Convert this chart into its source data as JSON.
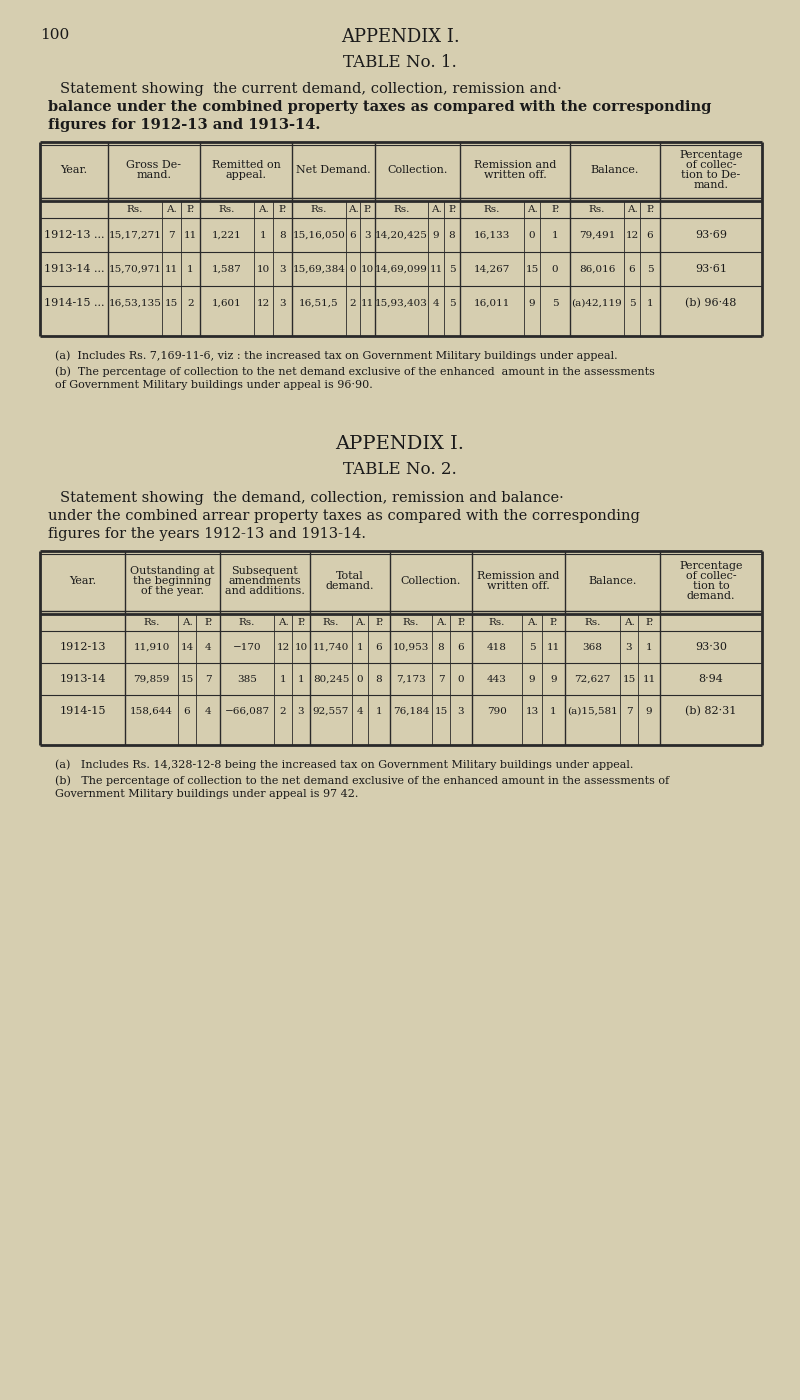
{
  "bg_color": "#d6ceb0",
  "page_number": "100",
  "appendix_title": "APPENDIX I.",
  "table1_title": "TABLE No. 1.",
  "table1_statement_line1": "Statement showing  the current demand, collection, remission and·",
  "table1_statement_line2": "balance under the combined property taxes as compared with the corresponding",
  "table1_statement_line3": "figures for 1912-13 and 1913-14.",
  "table1_headers": [
    "Year.",
    "Gross De-\nmand.",
    "Remitted on\nappeal.",
    "Net Demand.",
    "Collection.",
    "Remission and\nwritten off.",
    "Balance.",
    "Percentage\nof collec-\ntion to De-\nmand."
  ],
  "table1_rows": [
    [
      "1912-13 ...",
      "15,17,271",
      "7",
      "11",
      "1,221",
      "1",
      "8",
      "15,16,050",
      "6",
      "3",
      "14,20,425",
      "9",
      "8",
      "16,133",
      "0",
      "1",
      "79,491",
      "12",
      "6",
      "93·69"
    ],
    [
      "1913-14 ...",
      "15,70,971",
      "11",
      "1",
      "1,587",
      "10",
      "3",
      "15,69,384",
      "0",
      "10",
      "14,69,099",
      "11",
      "5",
      "14,267",
      "15",
      "0",
      "86,016",
      "6",
      "5",
      "93·61"
    ],
    [
      "1914-15 ...",
      "16,53,135",
      "15",
      "2",
      "1,601",
      "12",
      "3",
      "16,51,5",
      "2",
      "11",
      "15,93,403",
      "4",
      "5",
      "16,011",
      "9",
      "5",
      "(a)42,119",
      "5",
      "1",
      "(b) 96·48"
    ]
  ],
  "table1_note_a": "(a)  Includes Rs. 7,169-11-6, viz : the increased tax on Government Military buildings under appeal.",
  "table1_note_b": "(b)  The percentage of collection to the net demand exclusive of the enhanced  amount in the assessments",
  "table1_note_b2": "of Government Military buildings under appeal is 96·90.",
  "appendix2_title": "APPENDIX I.",
  "table2_title": "TABLE No. 2.",
  "table2_statement_line1": "Statement showing  the demand, collection, remission and balance·",
  "table2_statement_line2": "under the combined arrear property taxes as compared with the corresponding",
  "table2_statement_line3": "figures for the years 1912-13 and 1913-14.",
  "table2_headers": [
    "Year.",
    "Outstanding at\nthe beginning\nof the year.",
    "Subsequent\namendments\nand additions.",
    "Total\ndemand.",
    "Collection.",
    "Remission and\nwritten off.",
    "Balance.",
    "Percentage\nof collec-\ntion to\ndemand."
  ],
  "table2_rows": [
    [
      "1912-13",
      "11,910",
      "14",
      "4",
      "−170",
      "12",
      "10",
      "11,740",
      "1",
      "6",
      "10,953",
      "8",
      "6",
      "418",
      "5",
      "11",
      "368",
      "3",
      "1",
      "93·30"
    ],
    [
      "1913-14",
      "79,859",
      "15",
      "7",
      "385",
      "1",
      "1",
      "80,245",
      "0",
      "8",
      "7,173",
      "7",
      "0",
      "443",
      "9",
      "9",
      "72,627",
      "15",
      "11",
      "8·94"
    ],
    [
      "1914-15",
      "158,644",
      "6",
      "4",
      "−66,087",
      "2",
      "3",
      "92,557",
      "4",
      "1",
      "76,184",
      "15",
      "3",
      "790",
      "13",
      "1",
      "(a)15,581",
      "7",
      "9",
      "(b) 82·31"
    ]
  ],
  "table2_note_a": "(a)   Includes Rs. 14,328-12-8 being the increased tax on Government Military buildings under appeal.",
  "table2_note_b": "(b)   The percentage of collection to the net demand exclusive of the enhanced amount in the assessments of",
  "table2_note_b2": "Government Military buildings under appeal is 97 42."
}
